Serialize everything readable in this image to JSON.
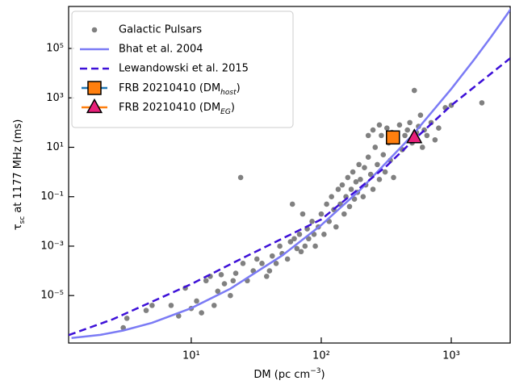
{
  "chart_data": {
    "type": "scatter",
    "xscale": "log",
    "yscale": "log",
    "xlim": [
      1.14,
      2840
    ],
    "ylim": [
      1.2e-07,
      5000000
    ],
    "xticks": [
      {
        "value": 10,
        "label": "10¹"
      },
      {
        "value": 100,
        "label": "10²"
      },
      {
        "value": 1000,
        "label": "10³"
      }
    ],
    "yticks": [
      {
        "value": 1e-05,
        "label": "10⁻⁵"
      },
      {
        "value": 0.001,
        "label": "10⁻³"
      },
      {
        "value": 0.1,
        "label": "10⁻¹"
      },
      {
        "value": 10,
        "label": "10¹"
      },
      {
        "value": 1000,
        "label": "10³"
      },
      {
        "value": 100000,
        "label": "10⁵"
      }
    ],
    "xlabel_parts": [
      "DM (pc cm",
      "−3",
      ")"
    ],
    "xlabel_script": "super",
    "ylabel_parts": [
      "τ",
      "sc",
      " at 1177 MHz (ms)"
    ],
    "ylabel_script": "sub",
    "legend": "upper left",
    "series": [
      {
        "name": "Galactic Pulsars",
        "type": "scatter",
        "marker": "circle",
        "color": "#808080",
        "x": [
          3,
          3.2,
          4.5,
          5,
          7,
          8,
          9,
          10,
          11,
          12,
          13,
          14,
          15,
          16,
          17,
          18,
          20,
          21,
          22,
          24,
          25,
          27,
          30,
          32,
          35,
          38,
          40,
          42,
          45,
          48,
          50,
          55,
          58,
          60,
          62,
          65,
          68,
          70,
          72,
          75,
          78,
          80,
          85,
          88,
          90,
          95,
          100,
          105,
          110,
          115,
          120,
          125,
          130,
          135,
          140,
          145,
          150,
          155,
          160,
          165,
          170,
          175,
          180,
          185,
          190,
          195,
          200,
          210,
          215,
          220,
          230,
          230,
          240,
          250,
          250,
          260,
          270,
          280,
          280,
          290,
          300,
          310,
          320,
          330,
          340,
          350,
          360,
          380,
          400,
          420,
          440,
          460,
          480,
          500,
          520,
          540,
          560,
          580,
          600,
          620,
          650,
          700,
          750,
          800,
          900,
          1000,
          1720
        ],
        "values": [
          5e-07,
          1.2e-06,
          2.5e-06,
          4e-06,
          4e-06,
          1.5e-06,
          2e-05,
          3e-06,
          6e-06,
          2e-06,
          4e-05,
          6e-05,
          4e-06,
          1.5e-05,
          7e-05,
          3e-05,
          1e-05,
          4e-05,
          8e-05,
          0.6,
          0.0002,
          4e-05,
          0.0001,
          0.0003,
          0.0002,
          6e-05,
          0.0001,
          0.0004,
          0.0002,
          0.001,
          0.0005,
          0.0003,
          0.0015,
          0.05,
          0.002,
          0.0008,
          0.003,
          0.0006,
          0.02,
          0.001,
          0.005,
          0.002,
          0.01,
          0.003,
          0.001,
          0.006,
          0.02,
          0.003,
          0.05,
          0.01,
          0.1,
          0.03,
          0.006,
          0.2,
          0.05,
          0.3,
          0.02,
          0.1,
          0.6,
          0.04,
          0.2,
          1,
          0.08,
          0.4,
          0.15,
          2,
          0.5,
          0.1,
          1.5,
          0.3,
          4,
          30,
          0.8,
          0.2,
          50,
          10,
          2,
          0.5,
          80,
          30,
          5,
          1,
          60,
          15,
          3,
          40,
          0.6,
          20,
          80,
          8,
          30,
          50,
          100,
          15,
          2000,
          40,
          70,
          200,
          10,
          50,
          30,
          100,
          20,
          60,
          400,
          500,
          630
        ]
      },
      {
        "name": "Bhat et al. 2004",
        "type": "line",
        "color": "#7b7bf5",
        "dashed": false,
        "x": [
          1.2,
          2,
          3,
          5,
          10,
          20,
          50,
          100,
          200,
          500,
          1000,
          1500,
          2000,
          2500,
          3000
        ],
        "values": [
          1.93e-07,
          2.57e-07,
          3.84e-07,
          7.9e-07,
          3.1e-06,
          1.9e-05,
          0.000415,
          0.0071,
          0.193,
          30,
          2300,
          35400,
          272000,
          1400000,
          5500000
        ]
      },
      {
        "name": "Lewandowski et al. 2015",
        "type": "line",
        "color": "#3d10d8",
        "dashed": true,
        "x": [
          1.14,
          2.5,
          10,
          24,
          100,
          320,
          500,
          1000,
          2840
        ],
        "values": [
          2.5e-07,
          1.1e-06,
          2.9e-05,
          0.0003,
          0.012,
          1.8,
          17,
          500,
          40000
        ]
      },
      {
        "name_parts": [
          "FRB 20210410 (DM",
          "host",
          ")"
        ],
        "type": "scatter",
        "marker": "square",
        "color": "#ff7f0e",
        "edgecolor": "#000000",
        "linecolor": "#1f77b4",
        "x": [
          356
        ],
        "values": [
          25
        ]
      },
      {
        "name_parts": [
          "FRB 20210410 (DM",
          "EG",
          ")"
        ],
        "type": "scatter",
        "marker": "triangle",
        "color": "#e8207a",
        "edgecolor": "#000000",
        "linecolor": "#ff7f0e",
        "x": [
          520
        ],
        "values": [
          25
        ]
      }
    ]
  }
}
